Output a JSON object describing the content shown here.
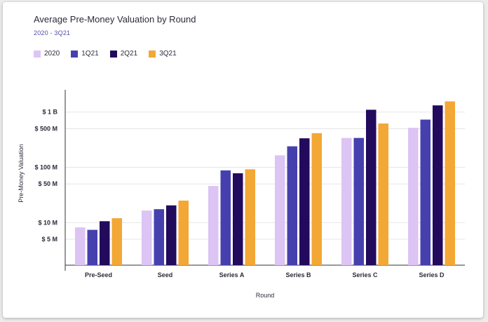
{
  "chart_data": {
    "type": "bar",
    "title": "Average Pre-Money Valuation by Round",
    "subtitle": "2020 - 3Q21",
    "xlabel": "Round",
    "ylabel": "Pre-Money Valuation",
    "yscale": "log",
    "ylim": [
      1.8,
      2000
    ],
    "yticks": [
      {
        "value": 5,
        "label": "$ 5 M"
      },
      {
        "value": 10,
        "label": "$ 10 M"
      },
      {
        "value": 50,
        "label": "$ 50 M"
      },
      {
        "value": 100,
        "label": "$ 100 M"
      },
      {
        "value": 500,
        "label": "$ 500 M"
      },
      {
        "value": 1000,
        "label": "$ 1 B"
      }
    ],
    "categories": [
      "Pre-Seed",
      "Seed",
      "Series A",
      "Series B",
      "Series C",
      "Series D"
    ],
    "series": [
      {
        "name": "2020",
        "color": "#dcc4f4",
        "values": [
          8.2,
          16.5,
          46,
          165,
          340,
          520
        ]
      },
      {
        "name": "1Q21",
        "color": "#4640ae",
        "values": [
          7.4,
          17.5,
          88,
          240,
          340,
          730
        ]
      },
      {
        "name": "2Q21",
        "color": "#220a5c",
        "values": [
          10.6,
          20.5,
          78,
          335,
          1100,
          1320
        ]
      },
      {
        "name": "3Q21",
        "color": "#f3a735",
        "values": [
          12.0,
          25.0,
          92,
          415,
          620,
          1560
        ]
      }
    ]
  }
}
